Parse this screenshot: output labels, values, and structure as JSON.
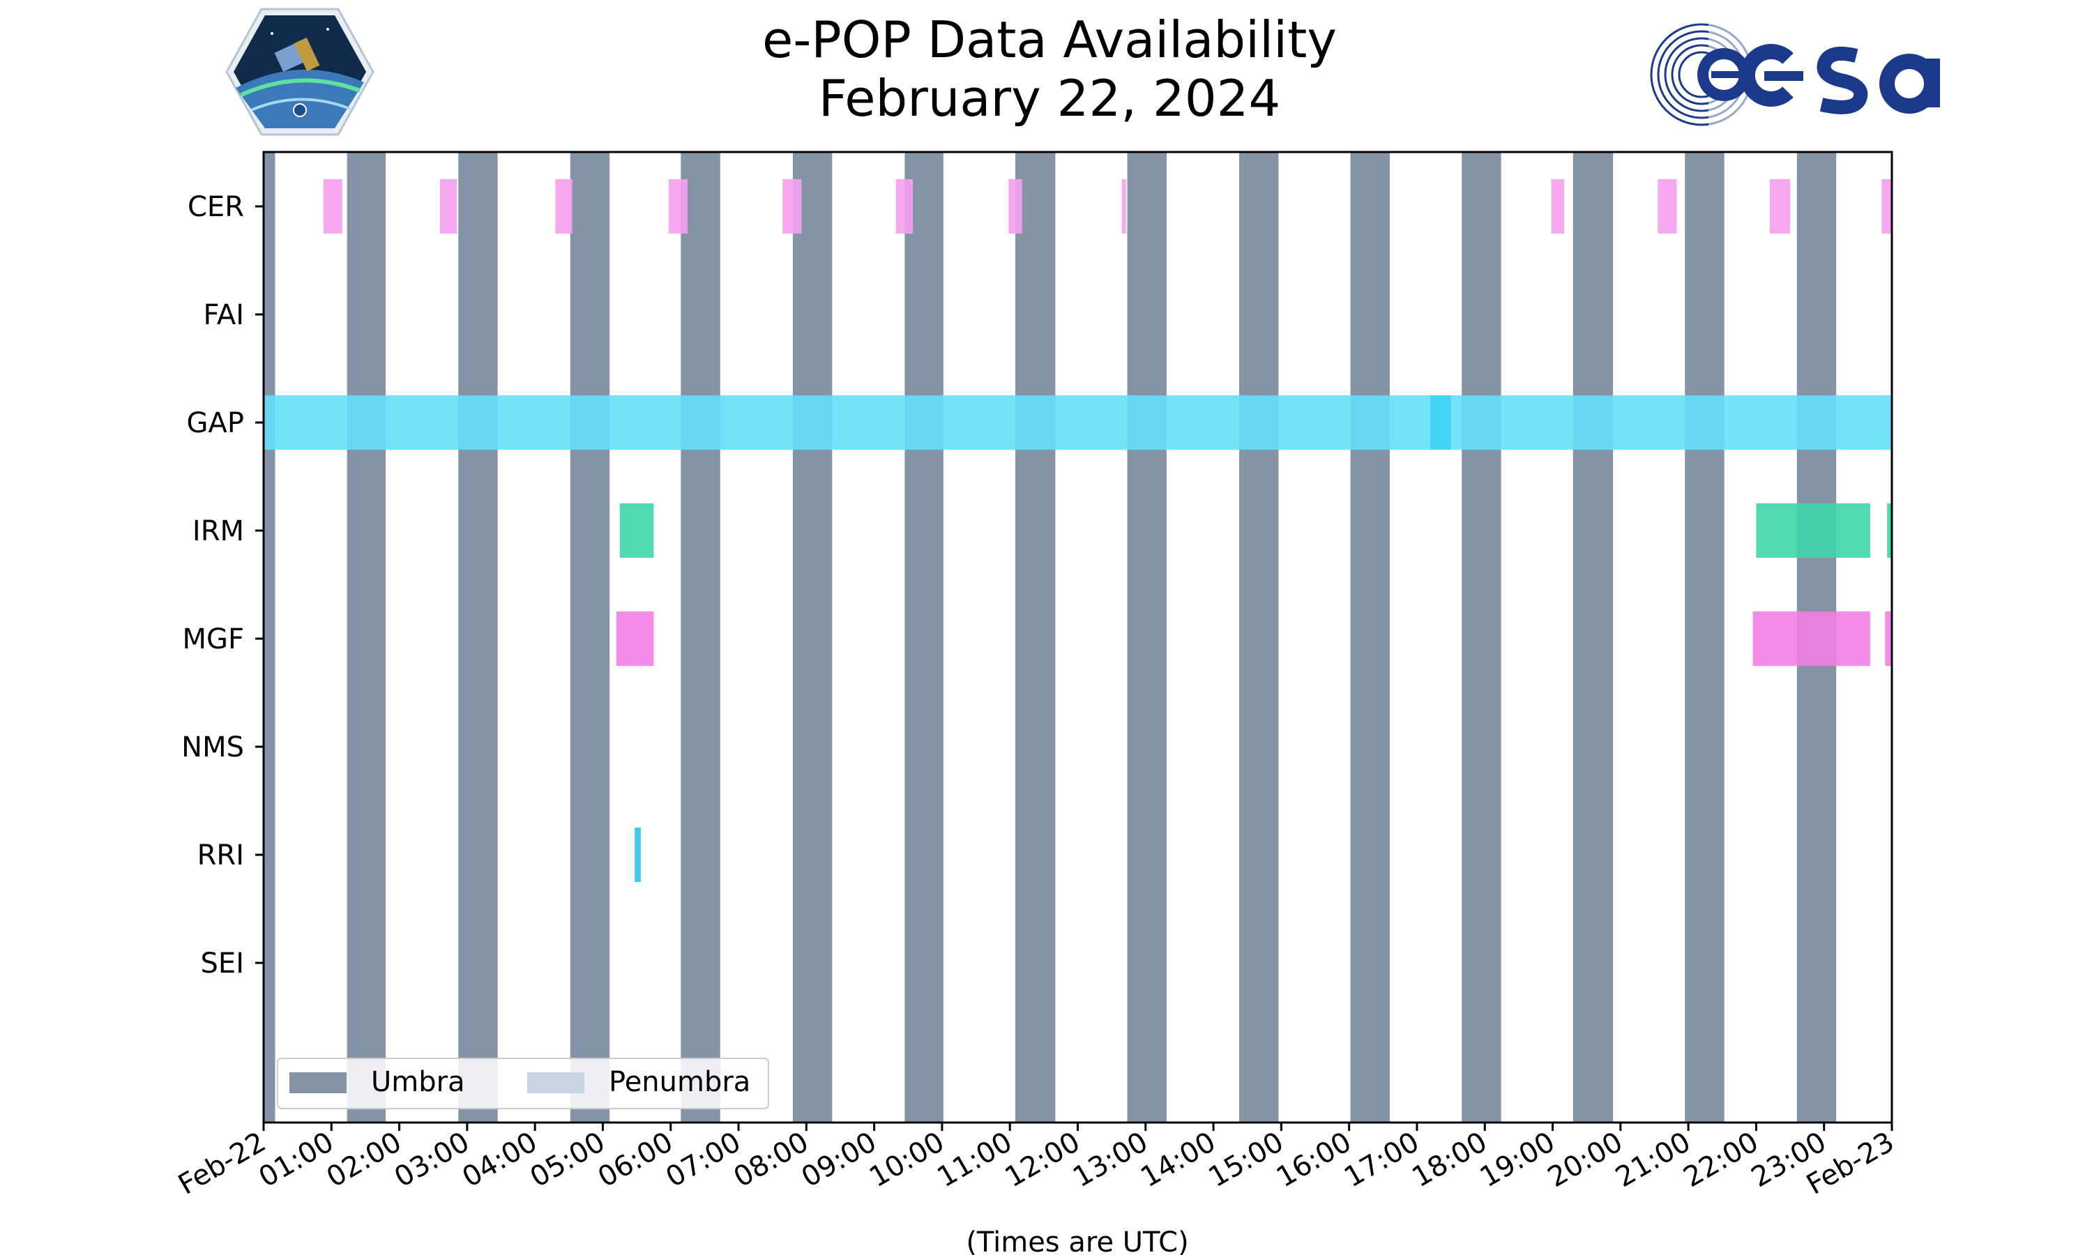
{
  "chart_data": {
    "type": "timeline",
    "title": "e-POP Data Availability",
    "subtitle": "February 22, 2024",
    "xlabel": "(Times are UTC)",
    "ylabel": "",
    "x_range_hours": [
      0,
      24
    ],
    "tick_labels": [
      "Feb-22",
      "01:00",
      "02:00",
      "03:00",
      "04:00",
      "05:00",
      "06:00",
      "07:00",
      "08:00",
      "09:00",
      "10:00",
      "11:00",
      "12:00",
      "13:00",
      "14:00",
      "15:00",
      "16:00",
      "17:00",
      "18:00",
      "19:00",
      "20:00",
      "21:00",
      "22:00",
      "23:00",
      "Feb-23"
    ],
    "instruments": [
      "CER",
      "FAI",
      "GAP",
      "IRM",
      "MGF",
      "NMS",
      "RRI",
      "SEI"
    ],
    "legend": {
      "placement": "lower-left",
      "entries": [
        {
          "label": "Umbra",
          "color": "#8494a6"
        },
        {
          "label": "Penumbra",
          "color": "#c8d4e4"
        }
      ]
    },
    "umbra": [
      [
        0.0,
        0.17
      ],
      [
        1.23,
        1.8
      ],
      [
        2.87,
        3.45
      ],
      [
        4.52,
        5.1
      ],
      [
        6.15,
        6.73
      ],
      [
        7.8,
        8.38
      ],
      [
        9.45,
        10.02
      ],
      [
        11.08,
        11.67
      ],
      [
        12.73,
        13.31
      ],
      [
        14.38,
        14.96
      ],
      [
        16.02,
        16.6
      ],
      [
        17.66,
        18.24
      ],
      [
        19.3,
        19.89
      ],
      [
        20.95,
        21.53
      ],
      [
        22.6,
        23.18
      ]
    ],
    "series": [
      {
        "name": "CER",
        "color": "#f5a0f0",
        "intervals": [
          [
            0.88,
            1.16
          ],
          [
            2.6,
            2.85
          ],
          [
            4.3,
            4.55
          ],
          [
            5.97,
            6.25
          ],
          [
            7.65,
            7.93
          ],
          [
            9.32,
            9.57
          ],
          [
            10.98,
            11.18
          ],
          [
            12.65,
            12.7
          ],
          [
            18.98,
            19.17
          ],
          [
            20.55,
            20.83
          ],
          [
            22.2,
            22.5
          ],
          [
            23.85,
            24.0
          ]
        ]
      },
      {
        "name": "FAI",
        "color": "#9ab0c8",
        "intervals": []
      },
      {
        "name": "GAP",
        "color": "#63e0f8",
        "intervals": [
          [
            0.0,
            24.0
          ]
        ],
        "highlight": [
          [
            17.2,
            17.5
          ]
        ],
        "highlight_color": "#40d5f5"
      },
      {
        "name": "IRM",
        "color": "#3ed6aa",
        "intervals": [
          [
            5.25,
            5.75
          ],
          [
            22.0,
            23.68
          ],
          [
            23.93,
            24.0
          ]
        ]
      },
      {
        "name": "MGF",
        "color": "#f27ee6",
        "intervals": [
          [
            5.2,
            5.75
          ],
          [
            21.95,
            23.68
          ],
          [
            23.9,
            24.0
          ]
        ]
      },
      {
        "name": "NMS",
        "color": "#9ab0c8",
        "intervals": []
      },
      {
        "name": "RRI",
        "color": "#2ac6e8",
        "intervals": [
          [
            5.47,
            5.56
          ]
        ]
      },
      {
        "name": "SEI",
        "color": "#9ab0c8",
        "intervals": []
      }
    ]
  }
}
